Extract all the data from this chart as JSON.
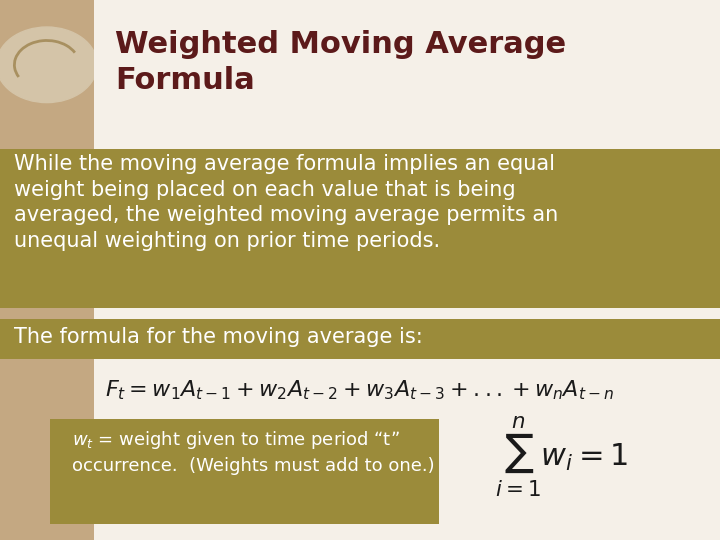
{
  "title": "Weighted Moving Average\nFormula",
  "title_color": "#5C1A1A",
  "bg_color": "#F5F0E8",
  "left_bar_color": "#C4A882",
  "gold_band_color": "#9B8B3A",
  "white_text_color": "#FFFFFF",
  "dark_text_color": "#1A1A1A",
  "body_bg": "#F5F0E8",
  "para1": "While the moving average formula implies an equal\nweight being placed on each value that is being\naveraged, the weighted moving average permits an\nunequal weighting on prior time periods.",
  "para2": "The formula for the moving average is:",
  "formula_main": "$F_t = w_1A_{t-1} + w_2A_{t-2} + w_3A_{t-3} + ... + w_nA_{t-n}$",
  "note_text": "$w_t$ = weight given to time period “t”\noccurrence.  (Weights must add to one.)",
  "sum_formula": "$\\sum_{i=1}^{n} w_i = 1$",
  "note_box_color": "#9B8B3A",
  "left_stripe_color": "#C4A882",
  "title_fontsize": 22,
  "body_fontsize": 15,
  "formula_fontsize": 16,
  "note_fontsize": 13
}
